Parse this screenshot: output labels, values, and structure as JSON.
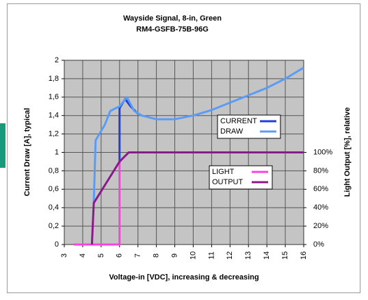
{
  "chart_data": {
    "type": "line",
    "title": "Wayside Signal, 8-in, Green",
    "subtitle": "RM4-GSFB-75B-96G",
    "x_label": "Voltage-in [VDC], increasing & decreasing",
    "y_label": "Current Draw [A], typical",
    "y2_label": "Light Output [%], relative",
    "xlim": [
      3,
      16
    ],
    "xticks": [
      3,
      4,
      5,
      6,
      7,
      8,
      9,
      10,
      11,
      12,
      13,
      14,
      15,
      16
    ],
    "ylim": [
      0,
      2
    ],
    "yticks": [
      0,
      {
        "value": 0.2,
        "label": "0,2"
      },
      {
        "value": 0.4,
        "label": "0,4"
      },
      {
        "value": 0.6,
        "label": "0,6"
      },
      {
        "value": 0.8,
        "label": "0,8"
      },
      1,
      {
        "value": 1.2,
        "label": "1,2"
      },
      {
        "value": 1.4,
        "label": "1,4"
      },
      {
        "value": 1.6,
        "label": "1,6"
      },
      {
        "value": 1.8,
        "label": "1,8"
      },
      2
    ],
    "y2lim": [
      0,
      200
    ],
    "y2ticks": [
      {
        "value": 0,
        "label": "0%"
      },
      {
        "value": 20,
        "label": "20%"
      },
      {
        "value": 40,
        "label": "40%"
      },
      {
        "value": 60,
        "label": "60%"
      },
      {
        "value": 80,
        "label": "80%"
      },
      {
        "value": 100,
        "label": "100%"
      }
    ],
    "grid": true,
    "series": [
      {
        "name": "CURRENT",
        "color": "#1f3fd8",
        "x": [
          6,
          6,
          6.3,
          6.6,
          7
        ],
        "values": [
          0.88,
          1.48,
          1.58,
          1.5,
          1.42
        ]
      },
      {
        "name": "DRAW",
        "color": "#5a9cf5",
        "x": [
          4.6,
          4.7,
          5.2,
          5.5,
          6,
          6.4,
          6.8,
          7.2,
          8,
          9,
          10,
          11,
          12,
          13,
          14,
          15,
          16
        ],
        "values": [
          0.45,
          1.13,
          1.3,
          1.45,
          1.5,
          1.6,
          1.45,
          1.4,
          1.36,
          1.36,
          1.4,
          1.46,
          1.54,
          1.62,
          1.7,
          1.8,
          1.92
        ]
      },
      {
        "name": "LIGHT",
        "color": "#ff40e0",
        "axis": "y2",
        "x": [
          3.5,
          6,
          6,
          6.5,
          16
        ],
        "values": [
          0,
          0,
          90,
          100,
          100
        ]
      },
      {
        "name": "OUTPUT",
        "color": "#8a1a8a",
        "axis": "y2",
        "x": [
          4.5,
          4.6,
          6,
          6.5,
          16
        ],
        "values": [
          0,
          45,
          90,
          100,
          100
        ]
      }
    ]
  }
}
